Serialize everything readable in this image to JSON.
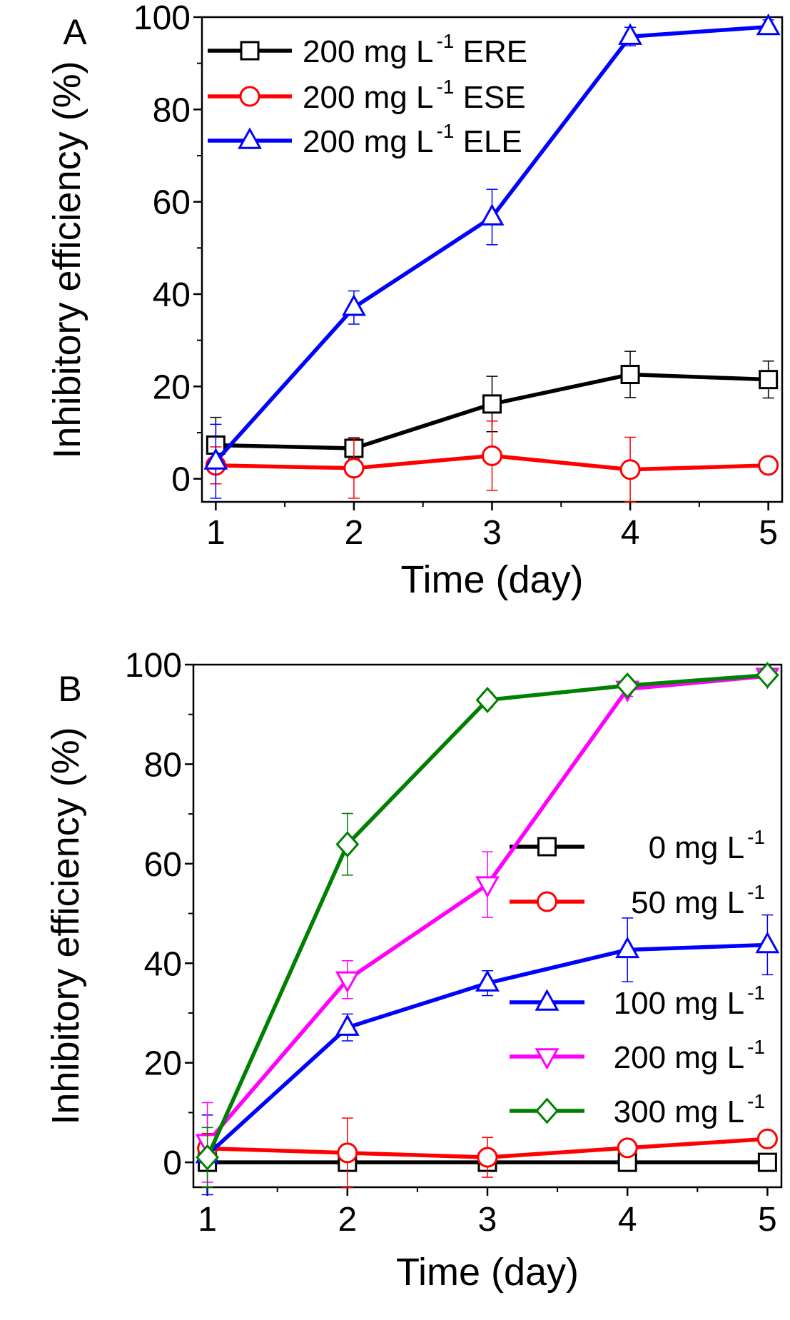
{
  "chart_data": [
    {
      "type": "line",
      "panel_label": "A",
      "xlabel": "Time (day)",
      "ylabel": "Inhibitory efficiency (%)",
      "xlim": [
        0.9,
        5.1
      ],
      "ylim": [
        -5,
        100
      ],
      "xticks": [
        1,
        2,
        3,
        4,
        5
      ],
      "yticks": [
        0,
        20,
        40,
        60,
        80,
        100
      ],
      "grid": false,
      "legend_position": "top-left",
      "x": [
        1,
        2,
        3,
        4,
        5
      ],
      "series": [
        {
          "name": "200 mg L-1 ERE",
          "label": "200 mg L",
          "sup": "-1",
          "suffix": " ERE",
          "color": "#000000",
          "marker": "square",
          "values": [
            7.3,
            6.6,
            16.2,
            22.6,
            21.5
          ],
          "errors": [
            6,
            2.3,
            6,
            5,
            4
          ]
        },
        {
          "name": "200 mg L-1 ESE",
          "label": "200 mg L",
          "sup": "-1",
          "suffix": " ESE",
          "color": "#ff0000",
          "marker": "circle",
          "values": [
            2.9,
            2.3,
            5.0,
            2.0,
            2.9
          ],
          "errors": [
            4,
            6.5,
            7.5,
            7,
            0.5
          ]
        },
        {
          "name": "200 mg L-1 ELE",
          "label": "200 mg L",
          "sup": "-1",
          "suffix": " ELE",
          "color": "#0000ff",
          "marker": "triangle-up",
          "values": [
            3.8,
            37.1,
            56.7,
            95.8,
            97.9
          ],
          "errors": [
            8,
            3.6,
            6,
            2,
            1.5
          ]
        }
      ]
    },
    {
      "type": "line",
      "panel_label": "B",
      "xlabel": "Time (day)",
      "ylabel": "Inhibitory efficiency (%)",
      "xlim": [
        0.9,
        5.1
      ],
      "ylim": [
        -5,
        100
      ],
      "xticks": [
        1,
        2,
        3,
        4,
        5
      ],
      "yticks": [
        0,
        20,
        40,
        60,
        80,
        100
      ],
      "grid": false,
      "legend_position": "right",
      "x": [
        1,
        2,
        3,
        4,
        5
      ],
      "series": [
        {
          "name": "0 mg L-1",
          "label": "0 mg L",
          "sup": "-1",
          "suffix": "",
          "color": "#000000",
          "marker": "square",
          "values": [
            0,
            0,
            0,
            0,
            0
          ],
          "errors": [
            0,
            0,
            0,
            0,
            0
          ]
        },
        {
          "name": "50 mg L-1",
          "label": "50 mg L",
          "sup": "-1",
          "suffix": "",
          "color": "#ff0000",
          "marker": "circle",
          "values": [
            2.8,
            1.9,
            1.0,
            2.9,
            4.7
          ],
          "errors": [
            3,
            7,
            4,
            1.5,
            1
          ]
        },
        {
          "name": "100 mg L-1",
          "label": "100 mg L",
          "sup": "-1",
          "suffix": "",
          "color": "#0000ff",
          "marker": "triangle-up",
          "values": [
            1.5,
            27.1,
            36.0,
            42.7,
            43.7
          ],
          "errors": [
            8,
            2.7,
            2.5,
            6.4,
            6
          ]
        },
        {
          "name": "200 mg L-1",
          "label": "200 mg L",
          "sup": "-1",
          "suffix": "",
          "color": "#ff00ff",
          "marker": "triangle-down",
          "values": [
            4.0,
            36.7,
            55.8,
            95.1,
            97.7
          ],
          "errors": [
            8,
            3.8,
            6.6,
            1.5,
            1
          ]
        },
        {
          "name": "300 mg L-1",
          "label": "300 mg L",
          "sup": "-1",
          "suffix": "",
          "color": "#008000",
          "marker": "diamond",
          "values": [
            1.0,
            63.9,
            92.9,
            95.8,
            97.9
          ],
          "errors": [
            6,
            6.2,
            1.5,
            1,
            1
          ]
        }
      ]
    }
  ]
}
